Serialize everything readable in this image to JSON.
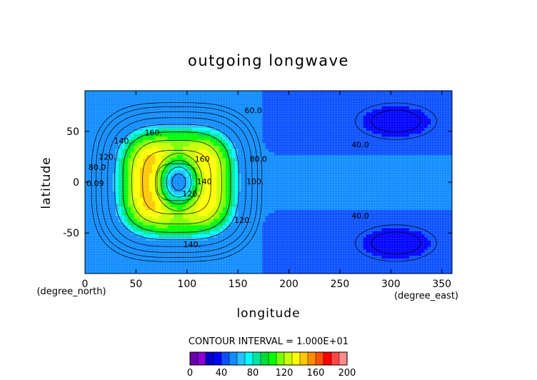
{
  "chart_data": {
    "type": "heatmap",
    "title": "outgoing longwave",
    "xlabel": "longitude",
    "ylabel": "latitude",
    "x_unit": "(degree_east)",
    "y_unit": "(degree_north)",
    "xlim": [
      0,
      360
    ],
    "ylim": [
      -90,
      90
    ],
    "x_ticks": [
      0,
      50,
      100,
      150,
      200,
      250,
      300,
      350
    ],
    "y_ticks": [
      -50,
      0,
      50
    ],
    "contour_interval_text": "CONTOUR INTERVAL = 1.000E+01",
    "colorbar": {
      "levels": [
        0,
        10,
        20,
        30,
        40,
        50,
        60,
        70,
        80,
        90,
        100,
        110,
        120,
        130,
        140,
        150,
        160,
        170,
        180,
        190,
        200
      ],
      "tick_labels": [
        "0",
        "40",
        "80",
        "120",
        "160",
        "200"
      ],
      "colors": [
        "#6a00a8",
        "#8a00d4",
        "#0000c8",
        "#0000ff",
        "#0a50ff",
        "#0f8cff",
        "#28beff",
        "#00ffff",
        "#00e6a0",
        "#00dc3c",
        "#00ff00",
        "#78ff00",
        "#c8ff00",
        "#ffff00",
        "#ffc800",
        "#ff8c00",
        "#ff5000",
        "#ff0000",
        "#ff4646",
        "#ff8c8c"
      ]
    },
    "contour_labels": [
      {
        "text": "60.0",
        "lon": 165,
        "lat": 68
      },
      {
        "text": "160.",
        "lon": 67,
        "lat": 46
      },
      {
        "text": "140.",
        "lon": 37,
        "lat": 38
      },
      {
        "text": "120.",
        "lon": 22,
        "lat": 22
      },
      {
        "text": "80.0",
        "lon": 12,
        "lat": 12
      },
      {
        "text": "0.09",
        "lon": 10,
        "lat": -4
      },
      {
        "text": "160",
        "lon": 115,
        "lat": 20
      },
      {
        "text": "140",
        "lon": 117,
        "lat": -2
      },
      {
        "text": "120.",
        "lon": 104,
        "lat": -14
      },
      {
        "text": "100.",
        "lon": 167,
        "lat": -2
      },
      {
        "text": "80.0",
        "lon": 170,
        "lat": 20
      },
      {
        "text": "120.",
        "lon": 155,
        "lat": -40
      },
      {
        "text": "140.",
        "lon": 105,
        "lat": -64
      },
      {
        "text": "40.0",
        "lon": 270,
        "lat": 34
      },
      {
        "text": "40.0",
        "lon": 270,
        "lat": -36
      }
    ]
  }
}
